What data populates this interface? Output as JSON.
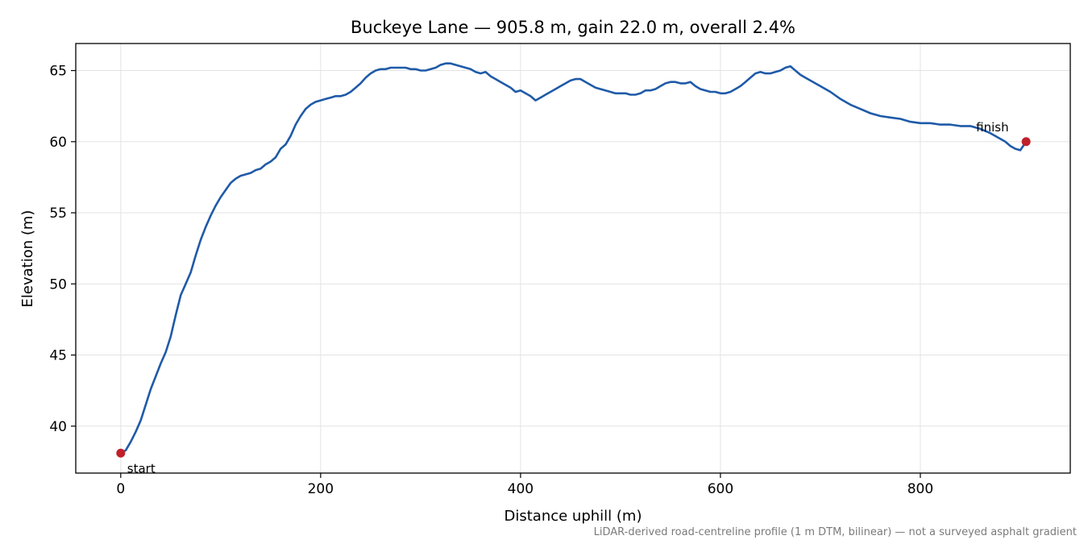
{
  "chart_data": {
    "type": "line",
    "title": "Buckeye Lane — 905.8 m, gain 22.0 m, overall 2.4%",
    "xlabel": "Distance uphill (m)",
    "ylabel": "Elevation (m)",
    "xlim": [
      -45,
      950
    ],
    "ylim": [
      36.7,
      66.9
    ],
    "xticks": [
      0,
      200,
      400,
      600,
      800
    ],
    "yticks": [
      40,
      45,
      50,
      55,
      60,
      65
    ],
    "grid": true,
    "series": [
      {
        "color": "#1f5aa8",
        "x": [
          0,
          5,
          10,
          15,
          20,
          25,
          30,
          35,
          40,
          45,
          50,
          55,
          60,
          65,
          70,
          75,
          80,
          85,
          90,
          95,
          100,
          105,
          110,
          115,
          120,
          125,
          130,
          135,
          140,
          145,
          150,
          155,
          160,
          165,
          170,
          175,
          180,
          185,
          190,
          195,
          200,
          205,
          210,
          215,
          220,
          225,
          230,
          235,
          240,
          245,
          250,
          255,
          260,
          265,
          270,
          275,
          280,
          285,
          290,
          295,
          300,
          305,
          310,
          315,
          320,
          325,
          330,
          335,
          340,
          345,
          350,
          355,
          360,
          365,
          370,
          375,
          380,
          385,
          390,
          395,
          400,
          405,
          410,
          415,
          420,
          425,
          430,
          435,
          440,
          445,
          450,
          455,
          460,
          465,
          470,
          475,
          480,
          485,
          490,
          495,
          500,
          505,
          510,
          515,
          520,
          525,
          530,
          535,
          540,
          545,
          550,
          555,
          560,
          565,
          570,
          575,
          580,
          585,
          590,
          595,
          600,
          605,
          610,
          615,
          620,
          625,
          630,
          635,
          640,
          645,
          650,
          655,
          660,
          665,
          670,
          675,
          680,
          685,
          690,
          695,
          700,
          710,
          720,
          730,
          740,
          750,
          760,
          770,
          780,
          790,
          800,
          810,
          820,
          830,
          840,
          850,
          860,
          870,
          875,
          880,
          885,
          890,
          895,
          900,
          905.8
        ],
        "y": [
          38.1,
          38.3,
          38.9,
          39.6,
          40.4,
          41.5,
          42.6,
          43.5,
          44.4,
          45.2,
          46.3,
          47.8,
          49.2,
          50.0,
          50.8,
          52.0,
          53.1,
          54.0,
          54.8,
          55.5,
          56.1,
          56.6,
          57.1,
          57.4,
          57.6,
          57.7,
          57.8,
          58.0,
          58.1,
          58.4,
          58.6,
          58.9,
          59.5,
          59.8,
          60.4,
          61.2,
          61.8,
          62.3,
          62.6,
          62.8,
          62.9,
          63.0,
          63.1,
          63.2,
          63.2,
          63.3,
          63.5,
          63.8,
          64.1,
          64.5,
          64.8,
          65.0,
          65.1,
          65.1,
          65.2,
          65.2,
          65.2,
          65.2,
          65.1,
          65.1,
          65.0,
          65.0,
          65.1,
          65.2,
          65.4,
          65.5,
          65.5,
          65.4,
          65.3,
          65.2,
          65.1,
          64.9,
          64.8,
          64.9,
          64.6,
          64.4,
          64.2,
          64.0,
          63.8,
          63.5,
          63.6,
          63.4,
          63.2,
          62.9,
          63.1,
          63.3,
          63.5,
          63.7,
          63.9,
          64.1,
          64.3,
          64.4,
          64.4,
          64.2,
          64.0,
          63.8,
          63.7,
          63.6,
          63.5,
          63.4,
          63.4,
          63.4,
          63.3,
          63.3,
          63.4,
          63.6,
          63.6,
          63.7,
          63.9,
          64.1,
          64.2,
          64.2,
          64.1,
          64.1,
          64.2,
          63.9,
          63.7,
          63.6,
          63.5,
          63.5,
          63.4,
          63.4,
          63.5,
          63.7,
          63.9,
          64.2,
          64.5,
          64.8,
          64.9,
          64.8,
          64.8,
          64.9,
          65.0,
          65.2,
          65.3,
          65.0,
          64.7,
          64.5,
          64.3,
          64.1,
          63.9,
          63.5,
          63.0,
          62.6,
          62.3,
          62.0,
          61.8,
          61.7,
          61.6,
          61.4,
          61.3,
          61.3,
          61.2,
          61.2,
          61.1,
          61.1,
          60.9,
          60.6,
          60.4,
          60.2,
          60.0,
          59.7,
          59.5,
          59.4,
          60.0
        ]
      }
    ],
    "points": [
      {
        "label": "start",
        "x": 0,
        "y": 38.1,
        "color": "#c0202a"
      },
      {
        "label": "finish",
        "x": 905.8,
        "y": 60.0,
        "color": "#c0202a"
      }
    ]
  },
  "credit": "LiDAR-derived road-centreline profile (1 m DTM, bilinear) — not a surveyed asphalt gradient"
}
